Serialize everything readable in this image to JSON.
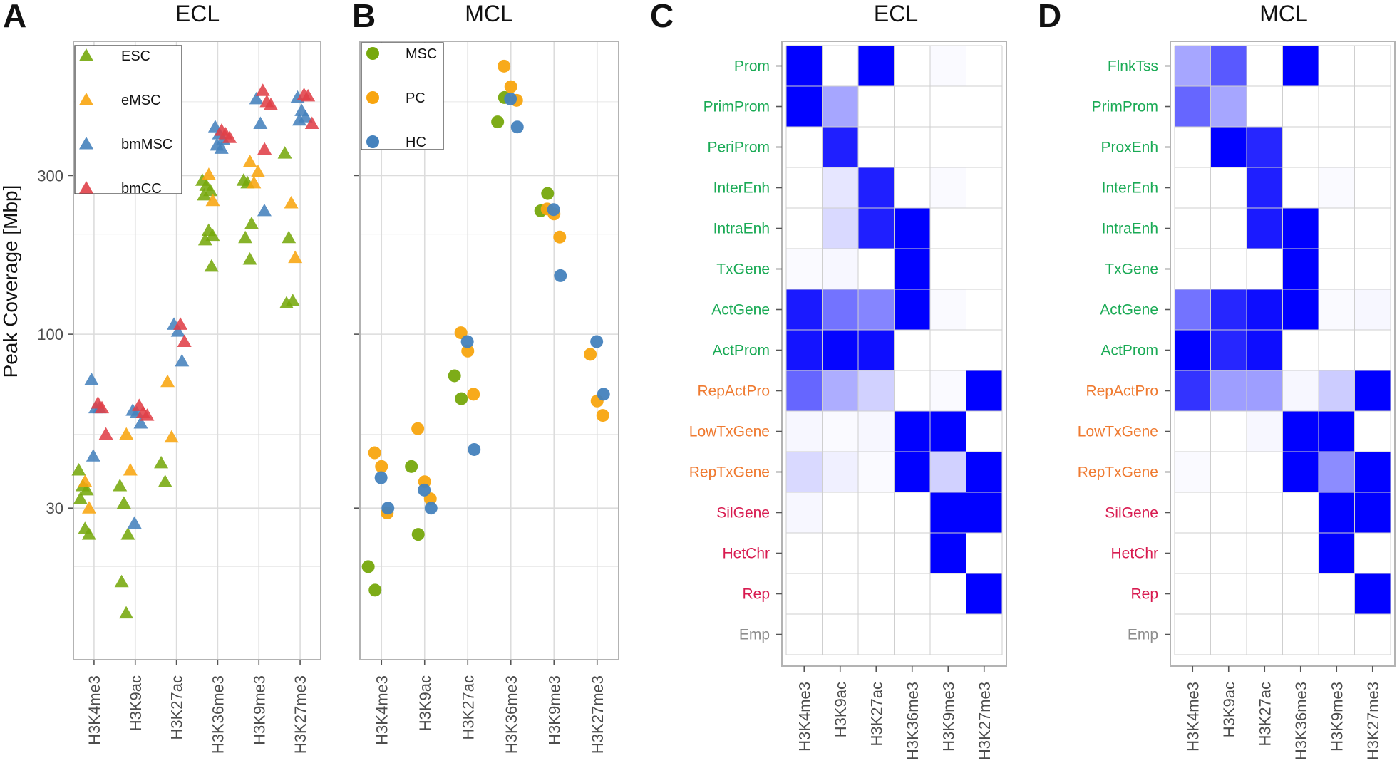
{
  "figure": {
    "panels": [
      {
        "letter": "A",
        "title": "ECL"
      },
      {
        "letter": "B",
        "title": "MCL"
      },
      {
        "letter": "C",
        "title": "ECL"
      },
      {
        "letter": "D",
        "title": "MCL"
      }
    ]
  },
  "chart_data": [
    {
      "type": "scatter",
      "panel": "A",
      "title": "ECL",
      "ylabel": "Peak Coverage [Mbp]",
      "yscale": "log",
      "ylim": [
        10.5,
        760
      ],
      "yticks": [
        30,
        100,
        300
      ],
      "categories": [
        "H3K4me3",
        "H3K9ac",
        "H3K27ac",
        "H3K36me3",
        "H3K9me3",
        "H3K27me3"
      ],
      "legend": [
        "ESC",
        "eMSC",
        "bmMSC",
        "bmCC"
      ],
      "marker": "triangle",
      "series": [
        {
          "name": "ESC",
          "color": "#76a80c",
          "points": [
            [
              0,
              39
            ],
            [
              0,
              35
            ],
            [
              0,
              34
            ],
            [
              0,
              32
            ],
            [
              0,
              26
            ],
            [
              0,
              25
            ],
            [
              1,
              35
            ],
            [
              1,
              31
            ],
            [
              1,
              25
            ],
            [
              1,
              18
            ],
            [
              1,
              14.5
            ],
            [
              2,
              41
            ],
            [
              2,
              36
            ],
            [
              3,
              290
            ],
            [
              3,
              280
            ],
            [
              3,
              270
            ],
            [
              3,
              262
            ],
            [
              3,
              205
            ],
            [
              3,
              198
            ],
            [
              3,
              192
            ],
            [
              3,
              160
            ],
            [
              4,
              290
            ],
            [
              4,
              285
            ],
            [
              4,
              215
            ],
            [
              4,
              195
            ],
            [
              4,
              168
            ],
            [
              5,
              350
            ],
            [
              5,
              195
            ],
            [
              5,
              126
            ],
            [
              5,
              124
            ]
          ]
        },
        {
          "name": "eMSC",
          "color": "#f8a50f",
          "points": [
            [
              0,
              36
            ],
            [
              0,
              30
            ],
            [
              1,
              50
            ],
            [
              1,
              39
            ],
            [
              2,
              72
            ],
            [
              2,
              49
            ],
            [
              3,
              302
            ],
            [
              3,
              252
            ],
            [
              4,
              330
            ],
            [
              4,
              285
            ],
            [
              4,
              308
            ],
            [
              5,
              248
            ],
            [
              5,
              170
            ]
          ]
        },
        {
          "name": "bmMSC",
          "color": "#4582bd",
          "points": [
            [
              0,
              73
            ],
            [
              0,
              60
            ],
            [
              0,
              60
            ],
            [
              0,
              43
            ],
            [
              1,
              59
            ],
            [
              1,
              58
            ],
            [
              1,
              54
            ],
            [
              1,
              27
            ],
            [
              2,
              107
            ],
            [
              2,
              102
            ],
            [
              2,
              83
            ],
            [
              3,
              420
            ],
            [
              3,
              400
            ],
            [
              3,
              385
            ],
            [
              3,
              370
            ],
            [
              3,
              362
            ],
            [
              4,
              510
            ],
            [
              4,
              430
            ],
            [
              4,
              235
            ],
            [
              5,
              515
            ],
            [
              5,
              470
            ],
            [
              5,
              450
            ],
            [
              5,
              440
            ]
          ]
        },
        {
          "name": "bmCC",
          "color": "#e04048",
          "points": [
            [
              0,
              62
            ],
            [
              0,
              60
            ],
            [
              0,
              50
            ],
            [
              1,
              61
            ],
            [
              1,
              58
            ],
            [
              1,
              57
            ],
            [
              2,
              107
            ],
            [
              2,
              95
            ],
            [
              3,
              410
            ],
            [
              3,
              400
            ],
            [
              3,
              390
            ],
            [
              4,
              540
            ],
            [
              4,
              500
            ],
            [
              4,
              490
            ],
            [
              4,
              360
            ],
            [
              5,
              525
            ],
            [
              5,
              520
            ],
            [
              5,
              430
            ]
          ]
        }
      ]
    },
    {
      "type": "scatter",
      "panel": "B",
      "title": "MCL",
      "yscale": "log",
      "ylim": [
        10.5,
        760
      ],
      "categories": [
        "H3K4me3",
        "H3K9ac",
        "H3K27ac",
        "H3K36me3",
        "H3K9me3",
        "H3K27me3"
      ],
      "legend": [
        "MSC",
        "PC",
        "HC"
      ],
      "marker": "circle",
      "series": [
        {
          "name": "MSC",
          "color": "#76a80c",
          "points": [
            [
              0,
              20
            ],
            [
              0,
              17
            ],
            [
              1,
              40
            ],
            [
              1,
              25
            ],
            [
              2,
              75
            ],
            [
              2,
              64
            ],
            [
              3,
              435
            ],
            [
              3,
              515
            ],
            [
              4,
              235
            ],
            [
              4,
              265
            ]
          ]
        },
        {
          "name": "PC",
          "color": "#f8a50f",
          "points": [
            [
              0,
              44
            ],
            [
              0,
              40
            ],
            [
              0,
              29
            ],
            [
              1,
              52
            ],
            [
              1,
              36
            ],
            [
              1,
              32
            ],
            [
              2,
              101
            ],
            [
              2,
              89
            ],
            [
              2,
              66
            ],
            [
              3,
              640
            ],
            [
              3,
              555
            ],
            [
              3,
              505
            ],
            [
              4,
              238
            ],
            [
              4,
              230
            ],
            [
              4,
              196
            ],
            [
              5,
              87
            ],
            [
              5,
              63
            ],
            [
              5,
              57
            ]
          ]
        },
        {
          "name": "HC",
          "color": "#4582bd",
          "points": [
            [
              0,
              37
            ],
            [
              0,
              30
            ],
            [
              1,
              34
            ],
            [
              1,
              30
            ],
            [
              2,
              95
            ],
            [
              2,
              45
            ],
            [
              3,
              510
            ],
            [
              3,
              420
            ],
            [
              4,
              237
            ],
            [
              4,
              150
            ],
            [
              5,
              95
            ],
            [
              5,
              66
            ]
          ]
        }
      ]
    },
    {
      "type": "heatmap",
      "panel": "C",
      "title": "ECL",
      "columns": [
        "H3K4me3",
        "H3K9ac",
        "H3K27ac",
        "H3K36me3",
        "H3K9me3",
        "H3K27me3"
      ],
      "rows": [
        "Prom",
        "PrimProm",
        "PeriProm",
        "InterEnh",
        "IntraEnh",
        "TxGene",
        "ActGene",
        "ActProm",
        "RepActPro",
        "LowTxGene",
        "RepTxGene",
        "SilGene",
        "HetChr",
        "Rep",
        "Emp"
      ],
      "row_groups": [
        "active",
        "active",
        "active",
        "active",
        "active",
        "active",
        "active",
        "active",
        "repressed",
        "repressed",
        "repressed",
        "silent",
        "silent",
        "silent",
        "empty"
      ],
      "values": [
        [
          1.0,
          0.0,
          1.0,
          0.0,
          0.02,
          0.0
        ],
        [
          1.0,
          0.35,
          0.0,
          0.0,
          0.0,
          0.0
        ],
        [
          0.0,
          0.88,
          0.0,
          0.0,
          0.0,
          0.0
        ],
        [
          0.0,
          0.1,
          0.88,
          0.0,
          0.02,
          0.0
        ],
        [
          0.0,
          0.15,
          0.88,
          1.0,
          0.0,
          0.0
        ],
        [
          0.02,
          0.03,
          0.0,
          1.0,
          0.0,
          0.0
        ],
        [
          0.9,
          0.55,
          0.48,
          1.0,
          0.02,
          0.0
        ],
        [
          0.92,
          0.98,
          0.95,
          0.0,
          0.0,
          0.0
        ],
        [
          0.6,
          0.32,
          0.18,
          0.0,
          0.02,
          1.0
        ],
        [
          0.03,
          0.02,
          0.03,
          1.0,
          1.0,
          0.0
        ],
        [
          0.15,
          0.06,
          0.02,
          1.0,
          0.18,
          1.0
        ],
        [
          0.03,
          0.0,
          0.0,
          0.0,
          1.0,
          1.0
        ],
        [
          0.0,
          0.0,
          0.0,
          0.0,
          1.0,
          0.0
        ],
        [
          0.0,
          0.0,
          0.0,
          0.0,
          0.0,
          1.0
        ],
        [
          0.0,
          0.0,
          0.0,
          0.0,
          0.0,
          0.0
        ]
      ]
    },
    {
      "type": "heatmap",
      "panel": "D",
      "title": "MCL",
      "columns": [
        "H3K4me3",
        "H3K9ac",
        "H3K27ac",
        "H3K36me3",
        "H3K9me3",
        "H3K27me3"
      ],
      "rows": [
        "FlnkTss",
        "PrimProm",
        "ProxEnh",
        "InterEnh",
        "IntraEnh",
        "TxGene",
        "ActGene",
        "ActProm",
        "RepActPro",
        "LowTxGene",
        "RepTxGene",
        "SilGene",
        "HetChr",
        "Rep",
        "Emp"
      ],
      "row_groups": [
        "active",
        "active",
        "active",
        "active",
        "active",
        "active",
        "active",
        "active",
        "repressed",
        "repressed",
        "repressed",
        "silent",
        "silent",
        "silent",
        "empty"
      ],
      "values": [
        [
          0.35,
          0.65,
          0.0,
          1.0,
          0.0,
          0.0
        ],
        [
          0.6,
          0.35,
          0.0,
          0.0,
          0.0,
          0.0
        ],
        [
          0.0,
          1.0,
          0.85,
          0.0,
          0.0,
          0.0
        ],
        [
          0.0,
          0.0,
          0.88,
          0.0,
          0.02,
          0.0
        ],
        [
          0.0,
          0.0,
          0.9,
          1.0,
          0.0,
          0.0
        ],
        [
          0.0,
          0.0,
          0.0,
          1.0,
          0.0,
          0.0
        ],
        [
          0.55,
          0.85,
          0.95,
          1.0,
          0.02,
          0.03
        ],
        [
          1.0,
          0.85,
          0.95,
          0.0,
          0.0,
          0.0
        ],
        [
          0.8,
          0.38,
          0.38,
          0.03,
          0.2,
          1.0
        ],
        [
          0.0,
          0.0,
          0.03,
          1.0,
          1.0,
          0.0
        ],
        [
          0.02,
          0.0,
          0.0,
          1.0,
          0.45,
          1.0
        ],
        [
          0.0,
          0.0,
          0.0,
          0.0,
          1.0,
          1.0
        ],
        [
          0.0,
          0.0,
          0.0,
          0.0,
          1.0,
          0.0
        ],
        [
          0.0,
          0.0,
          0.0,
          0.0,
          0.0,
          1.0
        ],
        [
          0.0,
          0.0,
          0.0,
          0.0,
          0.0,
          0.0
        ]
      ]
    }
  ],
  "colors": {
    "heat_max": "#0000ff",
    "heat_min": "#ffffff",
    "group_active": "#1aaa55",
    "group_repressed": "#ef7a30",
    "group_silent": "#d81b50",
    "group_empty": "#8e8e8e"
  }
}
